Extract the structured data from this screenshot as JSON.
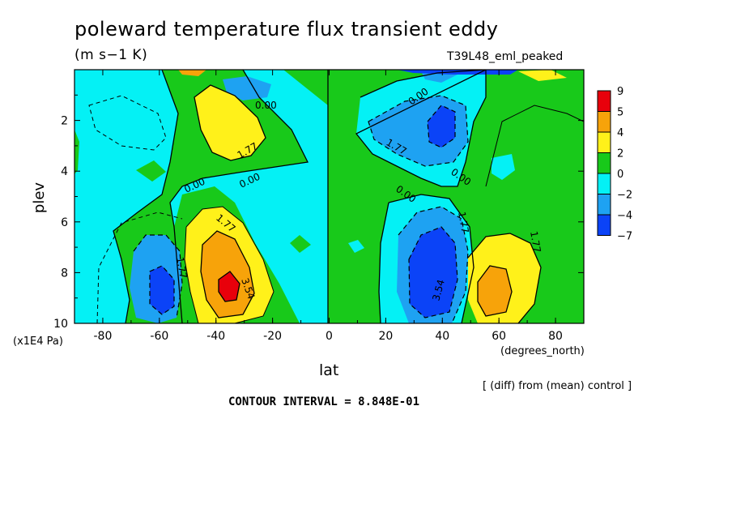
{
  "chart_data": {
    "type": "heatmap",
    "title": "poleward temperature flux transient eddy",
    "units": "(m s−1 K)",
    "run_label": "T39L48_eml_peaked",
    "xlabel": "lat",
    "x_unit": "(degrees_north)",
    "ylabel": "plev",
    "y_unit": "(x1E4 Pa)",
    "xlim": [
      -90,
      90
    ],
    "ylim": [
      10,
      0
    ],
    "x_ticks": [
      "-80",
      "-60",
      "-40",
      "-20",
      "0",
      "20",
      "40",
      "60",
      "80"
    ],
    "x_tick_values": [
      -80,
      -60,
      -40,
      -20,
      0,
      20,
      40,
      60,
      80
    ],
    "y_ticks": [
      "2",
      "4",
      "6",
      "8",
      "10"
    ],
    "y_tick_values": [
      2,
      4,
      6,
      8,
      10
    ],
    "note": "[ (diff) from (mean) control ]",
    "contour_interval": "CONTOUR INTERVAL = 8.848E-01",
    "contour_labels": [
      "0.00",
      "0.00",
      "0.00",
      "0.00",
      "0.00",
      "0.00",
      "1.77",
      "1.77",
      "1.77",
      "1.77",
      "1.77",
      "3.54",
      "3.54",
      "1.77"
    ],
    "colorbar": {
      "labels": [
        "9",
        "5",
        "4",
        "2",
        "0",
        "−2",
        "−4",
        "−7"
      ],
      "colors": [
        "#e8000b",
        "#f7a30a",
        "#fff11a",
        "#18c91a",
        "#04f1f5",
        "#1ea2f2",
        "#0b43f7"
      ]
    },
    "features": [
      {
        "kind": "positive_max",
        "lat": -37,
        "plev": 8.4,
        "value": 5.5
      },
      {
        "kind": "positive_max",
        "lat": 57,
        "plev": 9.0,
        "value": 4.5
      },
      {
        "kind": "positive_max",
        "lat": -33,
        "plev": 2.3,
        "value": 3.0
      },
      {
        "kind": "negative_min",
        "lat": -58,
        "plev": 8.7,
        "value": -5.0
      },
      {
        "kind": "negative_min",
        "lat": 38,
        "plev": 8.3,
        "value": -6.5
      },
      {
        "kind": "negative_min",
        "lat": 38,
        "plev": 2.3,
        "value": -4.5
      }
    ]
  }
}
